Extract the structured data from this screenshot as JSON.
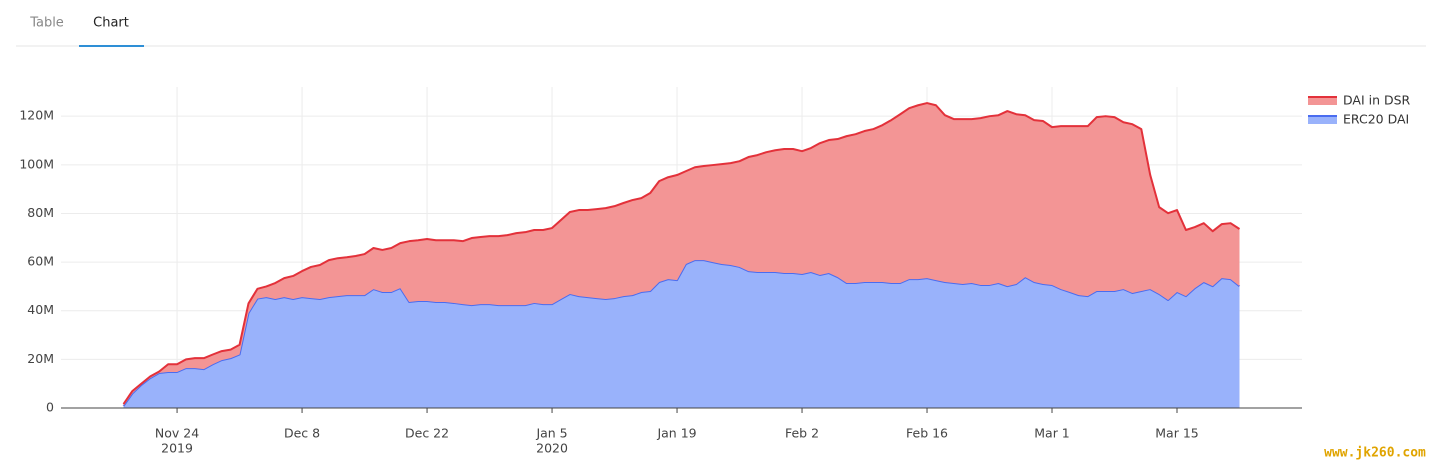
{
  "tabs": [
    "Table",
    "Chart"
  ],
  "watermark": "www.jk260.com",
  "chart_data": {
    "type": "area",
    "stacked": true,
    "x": [
      "2019-11-18",
      "2019-11-19",
      "2019-11-20",
      "2019-11-21",
      "2019-11-22",
      "2019-11-23",
      "2019-11-24",
      "2019-11-25",
      "2019-11-26",
      "2019-11-27",
      "2019-11-28",
      "2019-11-29",
      "2019-11-30",
      "2019-12-01",
      "2019-12-02",
      "2019-12-03",
      "2019-12-04",
      "2019-12-05",
      "2019-12-06",
      "2019-12-07",
      "2019-12-08",
      "2019-12-09",
      "2019-12-10",
      "2019-12-11",
      "2019-12-12",
      "2019-12-13",
      "2019-12-14",
      "2019-12-15",
      "2019-12-16",
      "2019-12-17",
      "2019-12-18",
      "2019-12-19",
      "2019-12-20",
      "2019-12-21",
      "2019-12-22",
      "2019-12-23",
      "2019-12-24",
      "2019-12-25",
      "2019-12-26",
      "2019-12-27",
      "2019-12-28",
      "2019-12-29",
      "2019-12-30",
      "2019-12-31",
      "2020-01-01",
      "2020-01-02",
      "2020-01-03",
      "2020-01-04",
      "2020-01-05",
      "2020-01-06",
      "2020-01-07",
      "2020-01-08",
      "2020-01-09",
      "2020-01-10",
      "2020-01-11",
      "2020-01-12",
      "2020-01-13",
      "2020-01-14",
      "2020-01-15",
      "2020-01-16",
      "2020-01-17",
      "2020-01-18",
      "2020-01-19",
      "2020-01-20",
      "2020-01-21",
      "2020-01-22",
      "2020-01-23",
      "2020-01-24",
      "2020-01-25",
      "2020-01-26",
      "2020-01-27",
      "2020-01-28",
      "2020-01-29",
      "2020-01-30",
      "2020-01-31",
      "2020-02-01",
      "2020-02-02",
      "2020-02-03",
      "2020-02-04",
      "2020-02-05",
      "2020-02-06",
      "2020-02-07",
      "2020-02-08",
      "2020-02-09",
      "2020-02-10",
      "2020-02-11",
      "2020-02-12",
      "2020-02-13",
      "2020-02-14",
      "2020-02-15",
      "2020-02-16",
      "2020-02-17",
      "2020-02-18",
      "2020-02-19",
      "2020-02-20",
      "2020-02-21",
      "2020-02-22",
      "2020-02-23",
      "2020-02-24",
      "2020-02-25",
      "2020-02-26",
      "2020-02-27",
      "2020-02-28",
      "2020-02-29",
      "2020-03-01",
      "2020-03-02",
      "2020-03-03",
      "2020-03-04",
      "2020-03-05",
      "2020-03-06",
      "2020-03-07",
      "2020-03-08",
      "2020-03-09",
      "2020-03-10",
      "2020-03-11",
      "2020-03-12",
      "2020-03-13",
      "2020-03-14",
      "2020-03-15",
      "2020-03-16",
      "2020-03-17",
      "2020-03-18",
      "2020-03-19",
      "2020-03-20",
      "2020-03-21",
      "2020-03-22"
    ],
    "series": [
      {
        "name": "ERC20 DAI",
        "color": "#4a6cf0",
        "fill": "#99b2fb",
        "values": [
          0.8,
          6,
          9.5,
          12.3,
          14.4,
          14.8,
          14.8,
          16.4,
          16.4,
          16,
          18,
          19.7,
          20.5,
          22,
          39,
          45,
          45.6,
          44.8,
          45.6,
          44.8,
          45.6,
          45.2,
          44.8,
          45.6,
          46,
          46.4,
          46.4,
          46.4,
          48.9,
          47.7,
          47.7,
          49.3,
          43.6,
          44,
          44,
          43.6,
          43.6,
          43.2,
          42.7,
          42.3,
          42.7,
          42.7,
          42.3,
          42.3,
          42.3,
          42.3,
          43.2,
          42.7,
          42.7,
          44.8,
          46.9,
          46,
          45.6,
          45.2,
          44.8,
          45.2,
          46,
          46.4,
          47.7,
          48.1,
          51.8,
          53,
          52.6,
          59.2,
          60.8,
          60.8,
          60,
          59.2,
          58.8,
          58,
          56.3,
          55.9,
          55.9,
          55.9,
          55.5,
          55.5,
          55.1,
          55.9,
          54.7,
          55.5,
          53.8,
          51.4,
          51.4,
          51.8,
          51.8,
          51.8,
          51.4,
          51.4,
          53,
          53,
          53.4,
          52.6,
          51.8,
          51.4,
          51,
          51.4,
          50.6,
          50.6,
          51.4,
          50.1,
          51,
          53.8,
          51.8,
          51,
          50.6,
          48.9,
          47.7,
          46.4,
          46,
          48.1,
          48.1,
          48.1,
          48.9,
          47.3,
          48.1,
          48.9,
          46.9,
          44.4,
          47.7,
          46,
          49.3,
          51.8,
          50.1,
          53.4,
          53,
          50.1
        ]
      },
      {
        "name": "DAI in DSR",
        "color": "#e3313a",
        "fill": "#f39595",
        "values": [
          0.8,
          1,
          0.5,
          0.7,
          0.6,
          3.2,
          3.2,
          3.6,
          4.1,
          4.5,
          4,
          3.7,
          3.5,
          4,
          4,
          4,
          4.4,
          6.6,
          7.8,
          9.5,
          10.7,
          12.8,
          14,
          15.2,
          15.6,
          15.6,
          16.1,
          16.9,
          16.9,
          17.3,
          18.1,
          18.5,
          25,
          25,
          25.5,
          25.4,
          25.4,
          25.8,
          25.9,
          27.6,
          27.6,
          28,
          28.4,
          28.8,
          29.6,
          30,
          30,
          30.5,
          31.3,
          32.5,
          33.7,
          35.4,
          35.8,
          36.6,
          37.4,
          37.8,
          38.3,
          39.1,
          38.6,
          40.3,
          41.5,
          41.9,
          43.2,
          38.2,
          38.2,
          38.7,
          39.9,
          41.1,
          41.9,
          43.5,
          46.9,
          48.1,
          49.3,
          50.1,
          51,
          51,
          50.5,
          51,
          54.2,
          54.7,
          56.8,
          60.4,
          61.2,
          62.1,
          62.9,
          64.5,
          67,
          69.4,
          70.3,
          71.5,
          72,
          71.9,
          68.6,
          67.4,
          67.8,
          67.4,
          68.6,
          69.4,
          69,
          72,
          69.8,
          66.6,
          66.6,
          67,
          64.9,
          67,
          68.2,
          69.5,
          69.9,
          71.5,
          71.9,
          71.5,
          68.6,
          69.4,
          66.6,
          46.9,
          35.7,
          35.7,
          33.7,
          27.2,
          25.1,
          24.2,
          22.6,
          22.2,
          23,
          23.5
        ]
      }
    ],
    "xlim": [
      "2019-11-11",
      "2020-03-29"
    ],
    "xticks": [
      {
        "value": "2019-11-24",
        "label": "Nov 24",
        "year": "2019"
      },
      {
        "value": "2019-12-08",
        "label": "Dec 8"
      },
      {
        "value": "2019-12-22",
        "label": "Dec 22"
      },
      {
        "value": "2020-01-05",
        "label": "Jan 5",
        "year": "2020"
      },
      {
        "value": "2020-01-19",
        "label": "Jan 19"
      },
      {
        "value": "2020-02-02",
        "label": "Feb 2"
      },
      {
        "value": "2020-02-16",
        "label": "Feb 16"
      },
      {
        "value": "2020-03-01",
        "label": "Mar 1"
      },
      {
        "value": "2020-03-15",
        "label": "Mar 15"
      }
    ],
    "ylim": [
      0,
      132
    ],
    "yticks": [
      0,
      {
        "value": 20,
        "label": "20M"
      },
      {
        "value": 40,
        "label": "40M"
      },
      {
        "value": 60,
        "label": "60M"
      },
      {
        "value": 80,
        "label": "80M"
      },
      {
        "value": 100,
        "label": "100M"
      },
      {
        "value": 120,
        "label": "120M"
      }
    ],
    "grid": true,
    "legend": "top-right"
  }
}
